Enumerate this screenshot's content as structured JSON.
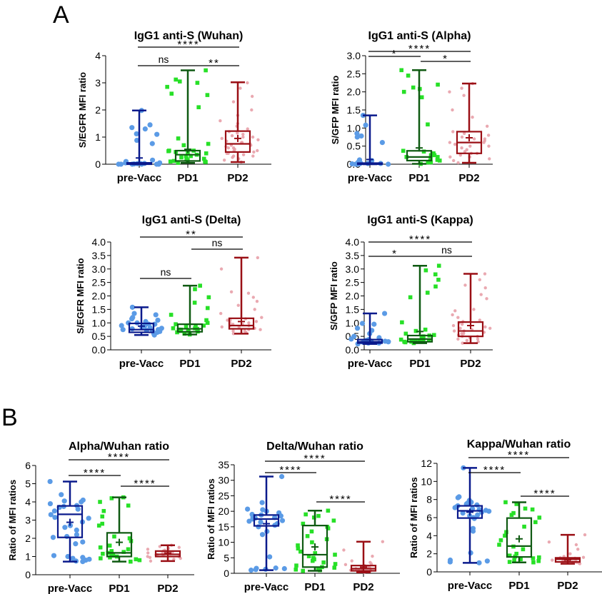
{
  "panel_labels": [
    "A",
    "B"
  ],
  "colors": {
    "pre-Vacc": {
      "line": "#0a1a8c",
      "point": "#5b9be6"
    },
    "PD1": {
      "line": "#0f5a12",
      "point": "#27e027"
    },
    "PD2": {
      "line": "#9a0f15",
      "point": "#e8a0a8"
    }
  },
  "chart_data": [
    {
      "type": "box",
      "panel": "A",
      "title": "IgG1 anti-S (Wuhan)",
      "xlabel": "",
      "ylabel": "S/EGFR MFI ratio",
      "categories": [
        "pre-Vacc",
        "PD1",
        "PD2"
      ],
      "ylim": [
        0,
        4
      ],
      "yticks": [
        "0",
        "1",
        "2",
        "3",
        "4"
      ],
      "yticks_values": [
        0,
        1,
        2,
        3,
        4
      ],
      "boxes": [
        {
          "group": "pre-Vacc",
          "min": 0.0,
          "q1": 0.0,
          "median": 0.02,
          "q3": 0.05,
          "max": 1.98,
          "mean": 0.23
        },
        {
          "group": "PD1",
          "min": 0.05,
          "q1": 0.12,
          "median": 0.35,
          "q3": 0.5,
          "max": 3.46,
          "mean": 0.55
        },
        {
          "group": "PD2",
          "min": 0.08,
          "q1": 0.45,
          "median": 0.75,
          "q3": 1.22,
          "max": 3.02,
          "mean": 0.95
        }
      ],
      "points": {
        "pre-Vacc": [
          0.0,
          0.0,
          0.0,
          0.0,
          0.01,
          0.02,
          0.03,
          0.05,
          0.0,
          0.02,
          0.0,
          0.15,
          0.1,
          0.05,
          0.76,
          0.88,
          1.1,
          1.12,
          1.3,
          1.35,
          1.45,
          1.98
        ],
        "PD1": [
          0.05,
          0.08,
          0.1,
          0.12,
          0.15,
          0.2,
          0.25,
          0.3,
          0.35,
          0.4,
          0.45,
          0.5,
          0.5,
          0.48,
          0.42,
          0.3,
          0.2,
          0.1,
          0.7,
          0.75,
          0.95,
          2.1,
          2.55,
          2.6,
          2.85,
          3.0,
          3.05,
          3.12,
          3.46
        ],
        "PD2": [
          0.08,
          0.15,
          0.2,
          0.25,
          0.3,
          0.35,
          0.4,
          0.45,
          0.5,
          0.55,
          0.6,
          0.65,
          0.7,
          0.75,
          0.8,
          0.85,
          0.9,
          0.95,
          1.0,
          1.05,
          1.1,
          1.15,
          1.2,
          1.3,
          1.4,
          1.5,
          1.6,
          1.8,
          2.0,
          2.3,
          2.5,
          2.8,
          3.0,
          0.6,
          0.7,
          0.8,
          0.4,
          0.5,
          1.0,
          0.3
        ]
      },
      "significance": [
        {
          "from": "pre-Vacc",
          "to": "PD2",
          "label": "****"
        },
        {
          "from": "pre-Vacc",
          "to": "PD1",
          "label": "ns"
        },
        {
          "from": "PD1",
          "to": "PD2",
          "label": "**"
        }
      ]
    },
    {
      "type": "box",
      "panel": "A",
      "title": "IgG1 anti-S (Alpha)",
      "xlabel": "",
      "ylabel": "S/GFP MFI ratio",
      "categories": [
        "pre-Vacc",
        "PD1",
        "PD2"
      ],
      "ylim": [
        0,
        3
      ],
      "yticks": [
        "0.0",
        "0.5",
        "1.0",
        "1.5",
        "2.0",
        "2.5",
        "3.0"
      ],
      "yticks_values": [
        0,
        0.5,
        1,
        1.5,
        2,
        2.5,
        3
      ],
      "boxes": [
        {
          "group": "pre-Vacc",
          "min": 0.0,
          "q1": 0.0,
          "median": 0.01,
          "q3": 0.03,
          "max": 1.35,
          "mean": 0.13
        },
        {
          "group": "PD1",
          "min": 0.01,
          "q1": 0.1,
          "median": 0.2,
          "q3": 0.37,
          "max": 2.6,
          "mean": 0.45
        },
        {
          "group": "PD2",
          "min": 0.04,
          "q1": 0.3,
          "median": 0.6,
          "q3": 0.9,
          "max": 2.23,
          "mean": 0.73
        }
      ],
      "points": {
        "pre-Vacc": [
          0.0,
          0.0,
          0.01,
          0.02,
          0.03,
          0.0,
          0.01,
          0.02,
          0.05,
          0.1,
          0.12,
          0.6,
          0.75,
          0.78,
          0.85,
          1.08,
          1.35
        ],
        "PD1": [
          0.01,
          0.05,
          0.1,
          0.12,
          0.15,
          0.2,
          0.25,
          0.3,
          0.35,
          0.37,
          0.3,
          0.2,
          0.1,
          0.05,
          0.25,
          1.1,
          1.85,
          2.0,
          2.08,
          2.12,
          2.2,
          2.45,
          2.6
        ],
        "PD2": [
          0.04,
          0.1,
          0.15,
          0.2,
          0.25,
          0.3,
          0.35,
          0.4,
          0.45,
          0.5,
          0.55,
          0.6,
          0.65,
          0.7,
          0.75,
          0.8,
          0.85,
          0.9,
          1.05,
          1.3,
          1.5,
          1.9,
          2.0,
          2.1,
          2.23,
          0.5,
          0.6,
          0.7,
          0.3,
          0.2
        ]
      },
      "significance": [
        {
          "from": "pre-Vacc",
          "to": "PD2",
          "label": "****"
        },
        {
          "from": "pre-Vacc",
          "to": "PD1",
          "label": "*"
        },
        {
          "from": "PD1",
          "to": "PD2",
          "label": "*"
        }
      ]
    },
    {
      "type": "box",
      "panel": "A",
      "title": "IgG1 anti-S (Delta)",
      "xlabel": "",
      "ylabel": "S/EGFR MFI ratio",
      "categories": [
        "pre-Vacc",
        "PD1",
        "PD2"
      ],
      "ylim": [
        0,
        4
      ],
      "yticks": [
        "0.0",
        "0.5",
        "1.0",
        "1.5",
        "2.0",
        "2.5",
        "3.0",
        "3.5",
        "4.0"
      ],
      "yticks_values": [
        0,
        0.5,
        1,
        1.5,
        2,
        2.5,
        3,
        3.5,
        4
      ],
      "boxes": [
        {
          "group": "pre-Vacc",
          "min": 0.55,
          "q1": 0.65,
          "median": 0.75,
          "q3": 0.98,
          "max": 1.58,
          "mean": 0.88
        },
        {
          "group": "PD1",
          "min": 0.57,
          "q1": 0.67,
          "median": 0.78,
          "q3": 0.95,
          "max": 2.38,
          "mean": 0.95
        },
        {
          "group": "PD2",
          "min": 0.6,
          "q1": 0.78,
          "median": 0.9,
          "q3": 1.17,
          "max": 3.42,
          "mean": 1.05
        }
      ],
      "points": {
        "pre-Vacc": [
          0.55,
          0.6,
          0.65,
          0.7,
          0.72,
          0.75,
          0.78,
          0.8,
          0.85,
          0.9,
          0.95,
          1.0,
          1.05,
          1.1,
          1.15,
          1.2,
          1.3,
          1.35,
          1.58,
          0.68,
          0.75,
          0.82,
          0.88,
          0.95,
          1.0
        ],
        "PD1": [
          0.57,
          0.6,
          0.65,
          0.68,
          0.7,
          0.72,
          0.75,
          0.78,
          0.8,
          0.85,
          0.9,
          0.95,
          1.0,
          1.1,
          1.3,
          1.55,
          1.75,
          1.95,
          2.25,
          2.38,
          0.7,
          0.75,
          0.8,
          0.9
        ],
        "PD2": [
          0.6,
          0.65,
          0.7,
          0.75,
          0.8,
          0.85,
          0.9,
          0.95,
          1.0,
          1.05,
          1.1,
          1.15,
          1.2,
          1.35,
          1.5,
          1.65,
          1.8,
          1.95,
          2.1,
          2.15,
          3.0,
          3.42,
          0.7,
          0.8,
          0.9,
          1.0,
          1.1,
          0.75,
          0.85,
          0.95
        ]
      },
      "significance": [
        {
          "from": "pre-Vacc",
          "to": "PD2",
          "label": "**"
        },
        {
          "from": "PD1",
          "to": "PD2",
          "label": "ns"
        },
        {
          "from": "pre-Vacc",
          "to": "PD1",
          "label": "ns"
        }
      ]
    },
    {
      "type": "box",
      "panel": "A",
      "title": "IgG1 anti-S (Kappa)",
      "xlabel": "",
      "ylabel": "S/GFP MFI ratio",
      "categories": [
        "pre-Vacc",
        "PD1",
        "PD2"
      ],
      "ylim": [
        0,
        4
      ],
      "yticks": [
        "0.0",
        "0.5",
        "1.0",
        "1.5",
        "2.0",
        "2.5",
        "3.0",
        "3.5",
        "4.0"
      ],
      "yticks_values": [
        0,
        0.5,
        1,
        1.5,
        2,
        2.5,
        3,
        3.5,
        4
      ],
      "boxes": [
        {
          "group": "pre-Vacc",
          "min": 0.22,
          "q1": 0.25,
          "median": 0.3,
          "q3": 0.38,
          "max": 1.35,
          "mean": 0.38
        },
        {
          "group": "PD1",
          "min": 0.25,
          "q1": 0.3,
          "median": 0.4,
          "q3": 0.53,
          "max": 3.12,
          "mean": 0.68
        },
        {
          "group": "PD2",
          "min": 0.25,
          "q1": 0.5,
          "median": 0.7,
          "q3": 1.03,
          "max": 2.82,
          "mean": 0.9
        }
      ],
      "points": {
        "pre-Vacc": [
          0.22,
          0.25,
          0.28,
          0.3,
          0.3,
          0.32,
          0.35,
          0.38,
          0.4,
          0.45,
          0.5,
          0.6,
          0.72,
          0.8,
          0.95,
          0.98,
          1.35,
          0.25,
          0.28,
          0.3
        ],
        "PD1": [
          0.25,
          0.28,
          0.3,
          0.32,
          0.35,
          0.38,
          0.4,
          0.42,
          0.45,
          0.5,
          0.53,
          0.55,
          0.6,
          0.7,
          0.75,
          1.02,
          1.95,
          2.12,
          2.35,
          2.6,
          2.8,
          2.95,
          3.12,
          0.3,
          0.35
        ],
        "PD2": [
          0.25,
          0.3,
          0.35,
          0.4,
          0.45,
          0.5,
          0.55,
          0.6,
          0.65,
          0.7,
          0.75,
          0.8,
          0.85,
          0.9,
          0.95,
          1.0,
          1.05,
          1.1,
          1.2,
          1.3,
          1.45,
          1.5,
          1.9,
          2.05,
          2.3,
          2.4,
          2.6,
          2.82,
          0.5,
          0.6,
          0.7,
          0.8,
          0.4
        ]
      },
      "significance": [
        {
          "from": "pre-Vacc",
          "to": "PD2",
          "label": "****"
        },
        {
          "from": "pre-Vacc",
          "to": "PD1",
          "label": "*"
        },
        {
          "from": "PD1",
          "to": "PD2",
          "label": "ns"
        }
      ]
    },
    {
      "type": "box",
      "panel": "B",
      "title": "Alpha/Wuhan ratio",
      "xlabel": "",
      "ylabel": "Ratio of MFI ratios",
      "categories": [
        "pre-Vacc",
        "PD1",
        "PD2"
      ],
      "ylim": [
        0,
        6
      ],
      "yticks": [
        "0",
        "1",
        "2",
        "3",
        "4",
        "5",
        "6"
      ],
      "yticks_values": [
        0,
        1,
        2,
        3,
        4,
        5,
        6
      ],
      "boxes": [
        {
          "group": "pre-Vacc",
          "min": 0.72,
          "q1": 2.05,
          "median": 3.32,
          "q3": 3.78,
          "max": 5.12,
          "mean": 2.88
        },
        {
          "group": "PD1",
          "min": 0.72,
          "q1": 1.0,
          "median": 1.2,
          "q3": 2.3,
          "max": 4.25,
          "mean": 1.78
        },
        {
          "group": "PD2",
          "min": 0.75,
          "q1": 1.0,
          "median": 1.12,
          "q3": 1.3,
          "max": 1.62,
          "mean": 1.2
        }
      ],
      "points": {
        "pre-Vacc": [
          0.72,
          0.75,
          0.8,
          0.85,
          0.9,
          0.95,
          1.0,
          1.05,
          1.7,
          1.8,
          2.05,
          2.1,
          2.2,
          2.45,
          2.6,
          2.7,
          2.9,
          3.1,
          3.15,
          3.3,
          3.5,
          3.6,
          3.7,
          3.75,
          3.8,
          3.9,
          4.0,
          4.05,
          4.1,
          4.4,
          5.12
        ],
        "PD1": [
          0.72,
          0.8,
          0.85,
          0.9,
          0.95,
          1.0,
          1.05,
          1.1,
          1.15,
          1.2,
          1.25,
          1.3,
          1.4,
          1.5,
          1.6,
          1.85,
          2.0,
          2.1,
          2.7,
          2.8,
          3.2,
          3.5,
          3.8,
          4.0,
          4.2,
          4.25
        ],
        "PD2": [
          0.75,
          0.85,
          0.9,
          0.95,
          1.0,
          1.05,
          1.1,
          1.15,
          1.2,
          1.25,
          1.3,
          1.35,
          1.4,
          1.45,
          1.5,
          1.55,
          1.62,
          1.0,
          1.1,
          1.2
        ]
      },
      "significance": [
        {
          "from": "pre-Vacc",
          "to": "PD2",
          "label": "****"
        },
        {
          "from": "pre-Vacc",
          "to": "PD1",
          "label": "****"
        },
        {
          "from": "PD1",
          "to": "PD2",
          "label": "****"
        }
      ]
    },
    {
      "type": "box",
      "panel": "B",
      "title": "Delta/Wuhan ratio",
      "xlabel": "",
      "ylabel": "Ratio of MFI ratios",
      "categories": [
        "pre-Vacc",
        "PD1",
        "PD2"
      ],
      "ylim": [
        0,
        35
      ],
      "yticks": [
        "0",
        "5",
        "10",
        "15",
        "20",
        "25",
        "30",
        "35"
      ],
      "yticks_values": [
        0,
        5,
        10,
        15,
        20,
        25,
        30,
        35
      ],
      "boxes": [
        {
          "group": "pre-Vacc",
          "min": 1.0,
          "q1": 15.3,
          "median": 17.5,
          "q3": 18.8,
          "max": 31.2,
          "mean": 16.0
        },
        {
          "group": "PD1",
          "min": 0.8,
          "q1": 2.0,
          "median": 6.0,
          "q3": 15.4,
          "max": 20.2,
          "mean": 8.5
        },
        {
          "group": "PD2",
          "min": 0.3,
          "q1": 0.8,
          "median": 1.5,
          "q3": 2.5,
          "max": 10.2,
          "mean": 2.0
        }
      ],
      "points": {
        "pre-Vacc": [
          1.0,
          1.2,
          1.3,
          1.5,
          1.6,
          1.7,
          5.3,
          12.5,
          13.5,
          15.0,
          15.5,
          16.0,
          16.5,
          17.0,
          17.5,
          18.0,
          18.5,
          18.8,
          19.0,
          19.5,
          20.0,
          20.5,
          20.7,
          22.8,
          31.2,
          17.8,
          18.2,
          16.8
        ],
        "PD1": [
          0.8,
          1.0,
          1.2,
          1.5,
          1.8,
          2.0,
          2.5,
          3.0,
          3.5,
          4.0,
          4.5,
          5.0,
          5.5,
          6.0,
          6.5,
          7.0,
          8.0,
          9.0,
          10.0,
          11.0,
          12.0,
          13.5,
          14.5,
          15.0,
          16.0,
          17.0,
          18.0,
          18.5,
          19.0,
          20.2
        ],
        "PD2": [
          0.3,
          0.5,
          0.8,
          1.0,
          1.2,
          1.5,
          1.8,
          2.0,
          2.2,
          2.5,
          2.8,
          3.0,
          3.5,
          4.0,
          5.5,
          7.5,
          10.2,
          1.0,
          1.5,
          2.0
        ]
      },
      "significance": [
        {
          "from": "pre-Vacc",
          "to": "PD2",
          "label": "****"
        },
        {
          "from": "pre-Vacc",
          "to": "PD1",
          "label": "****"
        },
        {
          "from": "PD1",
          "to": "PD2",
          "label": "****"
        }
      ]
    },
    {
      "type": "box",
      "panel": "B",
      "title": "Kappa/Wuhan ratio",
      "xlabel": "",
      "ylabel": "Ratio of MFI ratios",
      "categories": [
        "pre-Vacc",
        "PD1",
        "PD2"
      ],
      "ylim": [
        0,
        12
      ],
      "yticks": [
        "0",
        "2",
        "4",
        "6",
        "8",
        "10",
        "12"
      ],
      "yticks_values": [
        0,
        2,
        4,
        6,
        8,
        10,
        12
      ],
      "boxes": [
        {
          "group": "pre-Vacc",
          "min": 1.0,
          "q1": 5.95,
          "median": 6.75,
          "q3": 7.3,
          "max": 11.5,
          "mean": 6.6
        },
        {
          "group": "PD1",
          "min": 1.05,
          "q1": 1.65,
          "median": 2.85,
          "q3": 5.95,
          "max": 7.7,
          "mean": 3.65
        },
        {
          "group": "PD2",
          "min": 0.9,
          "q1": 1.1,
          "median": 1.4,
          "q3": 1.55,
          "max": 4.1,
          "mean": 1.3
        }
      ],
      "points": {
        "pre-Vacc": [
          1.0,
          1.1,
          1.2,
          1.3,
          2.1,
          4.5,
          4.8,
          5.9,
          6.0,
          6.2,
          6.3,
          6.5,
          6.6,
          6.7,
          6.8,
          6.9,
          7.0,
          7.1,
          7.2,
          7.3,
          7.4,
          7.5,
          7.6,
          7.7,
          7.9,
          8.2,
          8.3,
          11.5
        ],
        "PD1": [
          1.05,
          1.1,
          1.2,
          1.3,
          1.4,
          1.5,
          1.6,
          1.7,
          1.8,
          2.0,
          2.5,
          2.8,
          3.0,
          3.5,
          4.0,
          4.4,
          5.0,
          5.5,
          6.0,
          6.3,
          6.5,
          6.9,
          7.0,
          7.5,
          7.7
        ],
        "PD2": [
          0.9,
          1.0,
          1.05,
          1.1,
          1.15,
          1.2,
          1.3,
          1.4,
          1.5,
          1.55,
          1.6,
          1.7,
          2.0,
          2.5,
          3.0,
          3.3,
          4.1,
          1.2,
          1.3
        ]
      },
      "significance": [
        {
          "from": "pre-Vacc",
          "to": "PD2",
          "label": "****"
        },
        {
          "from": "pre-Vacc",
          "to": "PD1",
          "label": "****"
        },
        {
          "from": "PD1",
          "to": "PD2",
          "label": "****"
        }
      ]
    }
  ]
}
